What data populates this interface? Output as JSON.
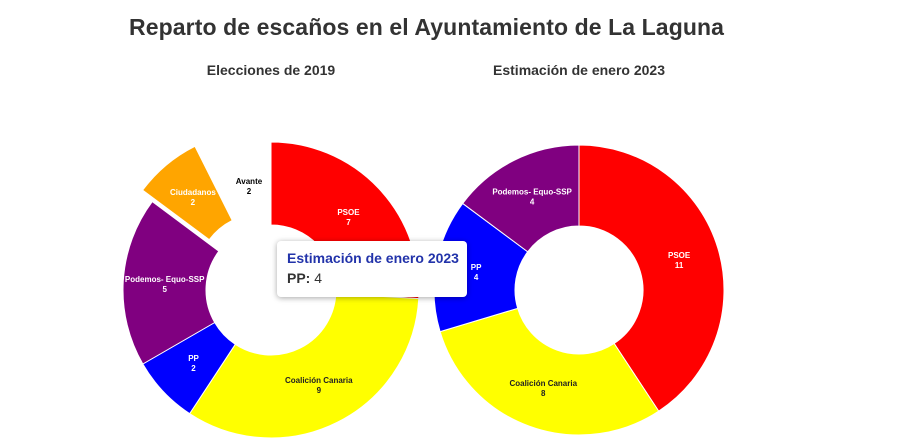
{
  "title": "Reparto de escaños en el Ayuntamiento de La Laguna",
  "chart_data": [
    {
      "type": "pie",
      "title": "Elecciones de 2019",
      "series": [
        {
          "label": "PSOE",
          "value": 7,
          "color": "#ff0000"
        },
        {
          "label": "Coalición Canaria",
          "value": 9,
          "color": "#ffff00"
        },
        {
          "label": "PP",
          "value": 2,
          "color": "#0000ff"
        },
        {
          "label": "Podemos- Equo-SSP",
          "value": 5,
          "color": "#800080"
        },
        {
          "label": "Ciudadanos",
          "value": 2,
          "color": "#ffa500"
        },
        {
          "label": "Avante",
          "value": 2,
          "color": "#ffffff"
        }
      ]
    },
    {
      "type": "pie",
      "title": "Estimación de enero 2023",
      "series": [
        {
          "label": "PSOE",
          "value": 11,
          "color": "#ff0000"
        },
        {
          "label": "Coalición Canaria",
          "value": 8,
          "color": "#ffff00"
        },
        {
          "label": "PP",
          "value": 4,
          "color": "#0000ff"
        },
        {
          "label": "Podemos- Equo-SSP",
          "value": 4,
          "color": "#800080"
        }
      ]
    }
  ],
  "tooltip": {
    "title": "Estimación de enero 2023",
    "label": "PP:",
    "value": "4"
  }
}
